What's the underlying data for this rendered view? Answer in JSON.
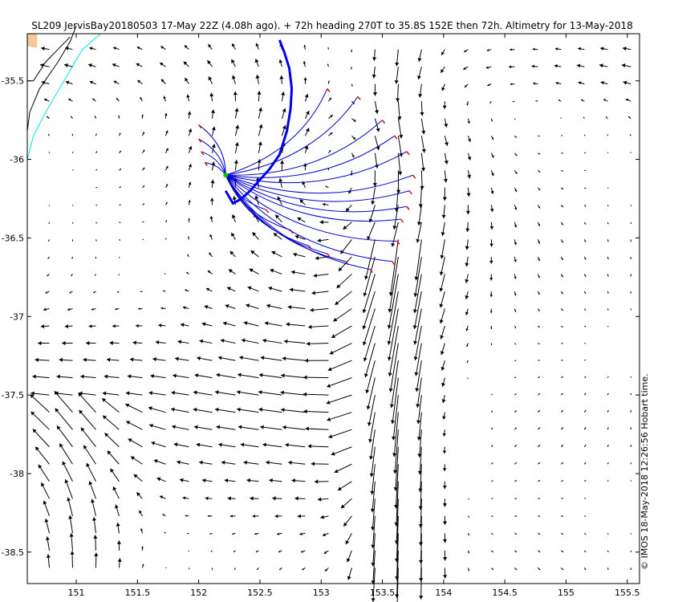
{
  "chart_data": {
    "type": "quiver",
    "title": "SL209 JervisBay20180503 17-May 22Z (4.08h ago). + 72h heading 270T to 35.8S 152E then 72h. Altimetry for 13-May-2018",
    "credit": "© IMOS 18-May-2018 12:26:56 Hobart time.",
    "xlim": [
      150.6,
      155.6
    ],
    "ylim": [
      -38.7,
      -35.2
    ],
    "x_ticks": [
      151,
      151.5,
      152,
      152.5,
      153,
      153.5,
      154,
      154.5,
      155,
      155.5
    ],
    "x_tick_labels": [
      "151",
      "151.5",
      "152",
      "152.5",
      "153",
      "153.5",
      "154",
      "154.5",
      "155",
      "155.5"
    ],
    "y_ticks": [
      -35.5,
      -36,
      -36.5,
      -37,
      -37.5,
      -38,
      -38.5
    ],
    "y_tick_labels": [
      "-35.5",
      "-36",
      "-36.5",
      "-37",
      "-37.5",
      "-38",
      "-38.5"
    ],
    "grid": false,
    "colors": {
      "arrows": "#000000",
      "glider_track": "#0000ee",
      "forecast_paths": "#0000cc",
      "path_ends": "#ee0000",
      "coastline": "#000000",
      "bathymetry_contour": "#00e5e5",
      "land": "#f5c89a",
      "start_marker": "#00cc00"
    },
    "glider_track": [
      [
        152.66,
        -35.24
      ],
      [
        152.7,
        -35.32
      ],
      [
        152.74,
        -35.42
      ],
      [
        152.76,
        -35.55
      ],
      [
        152.75,
        -35.68
      ],
      [
        152.72,
        -35.82
      ],
      [
        152.66,
        -35.97
      ],
      [
        152.58,
        -36.06
      ],
      [
        152.5,
        -36.13
      ],
      [
        152.42,
        -36.2
      ],
      [
        152.35,
        -36.25
      ],
      [
        152.28,
        -36.28
      ],
      [
        152.22,
        -36.2
      ]
    ],
    "forecast_start": [
      152.22,
      -36.1
    ],
    "forecast_end_points": [
      [
        152.0,
        -35.78
      ],
      [
        152.0,
        -35.87
      ],
      [
        152.02,
        -35.95
      ],
      [
        152.05,
        -36.02
      ],
      [
        152.55,
        -36.32
      ],
      [
        152.75,
        -36.45
      ],
      [
        152.9,
        -36.55
      ],
      [
        153.05,
        -36.6
      ],
      [
        153.2,
        -36.65
      ],
      [
        153.4,
        -36.7
      ],
      [
        153.58,
        -36.65
      ],
      [
        153.62,
        -36.52
      ],
      [
        153.65,
        -36.38
      ],
      [
        153.7,
        -36.3
      ],
      [
        153.72,
        -36.2
      ],
      [
        153.75,
        -36.1
      ],
      [
        153.7,
        -35.95
      ],
      [
        153.6,
        -35.85
      ],
      [
        153.5,
        -35.75
      ],
      [
        153.3,
        -35.6
      ],
      [
        153.05,
        -35.55
      ]
    ],
    "velocity_field_note": "gridded surface current vectors"
  }
}
